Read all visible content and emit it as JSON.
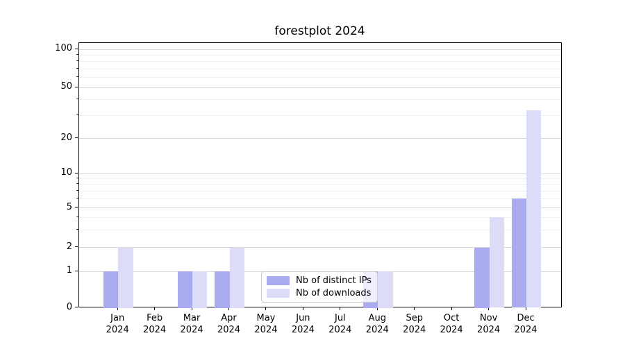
{
  "chart_data": {
    "type": "bar",
    "title": "forestplot 2024",
    "categories": [
      "Jan",
      "Feb",
      "Mar",
      "Apr",
      "May",
      "Jun",
      "Jul",
      "Aug",
      "Sep",
      "Oct",
      "Nov",
      "Dec"
    ],
    "x_year": "2024",
    "series": [
      {
        "name": "Nb of distinct IPs",
        "color": "#aaaaee",
        "values": [
          1,
          0,
          1,
          1,
          0,
          0,
          0,
          1,
          0,
          0,
          2,
          6
        ]
      },
      {
        "name": "Nb of downloads",
        "color": "#dcdcf8",
        "values": [
          2,
          0,
          1,
          2,
          0,
          0,
          0,
          1,
          0,
          0,
          4,
          33
        ]
      }
    ],
    "xlabel": "",
    "ylabel": "",
    "yaxis": {
      "scale": "symlog",
      "major_ticks": [
        0,
        1,
        2,
        5,
        10,
        20,
        50,
        100
      ],
      "minor_ticks": [
        3,
        4,
        6,
        7,
        8,
        9,
        30,
        40,
        60,
        70,
        80,
        90
      ],
      "ylim": [
        0,
        113
      ]
    },
    "grid": true,
    "legend": {
      "position": "lower-center",
      "entries": [
        "Nb of distinct IPs",
        "Nb of downloads"
      ]
    }
  }
}
